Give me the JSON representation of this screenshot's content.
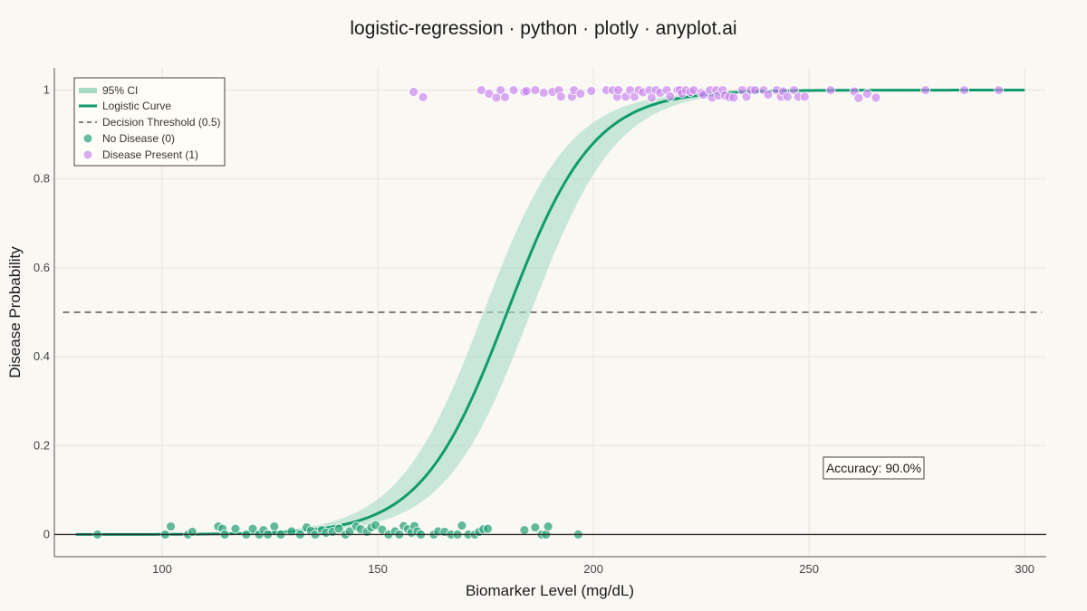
{
  "chart_data": {
    "type": "scatter",
    "title": "logistic-regression · python · plotly · anyplot.ai",
    "xlabel": "Biomarker Level (mg/dL)",
    "ylabel": "Disease Probability",
    "xlim": [
      75,
      305
    ],
    "ylim": [
      -0.05,
      1.05
    ],
    "x_ticks": [
      100,
      150,
      200,
      250,
      300
    ],
    "y_ticks": [
      0,
      0.2,
      0.4,
      0.6,
      0.8,
      1
    ],
    "x_tick_labels": [
      "100",
      "150",
      "200",
      "250",
      "300"
    ],
    "y_tick_labels": [
      "0",
      "0.2",
      "0.4",
      "0.6",
      "0.8",
      "1"
    ],
    "grid": true,
    "legend_position": "top-left",
    "colors": {
      "curve": "#0f9b6e",
      "ci": "#a8dcc6",
      "no_disease": "#2fa57c",
      "disease": "#c77ff0",
      "threshold": "#555555",
      "background": "#faf8f2",
      "grid": "#e6e3dc"
    },
    "logistic_model": {
      "midpoint": 180,
      "slope": 0.1,
      "x_range": [
        80,
        300
      ],
      "ci_logit_halfwidth": 0.55
    },
    "threshold": 0.5,
    "legend": {
      "ci": "95% CI",
      "curve": "Logistic Curve",
      "threshold": "Decision Threshold (0.5)",
      "no_disease": "No Disease (0)",
      "disease": "Disease Present (1)"
    },
    "annotation": "Accuracy: 90.0%",
    "series": [
      {
        "name": "No Disease (0)",
        "points": [
          [
            85,
            0
          ],
          [
            100.7,
            0
          ],
          [
            102,
            0.018
          ],
          [
            106,
            0
          ],
          [
            107,
            0.006
          ],
          [
            113,
            0.018
          ],
          [
            114,
            0.013
          ],
          [
            114.5,
            0
          ],
          [
            117,
            0.013
          ],
          [
            119.5,
            0
          ],
          [
            121,
            0.013
          ],
          [
            122.5,
            0
          ],
          [
            123.5,
            0.01
          ],
          [
            124.5,
            0
          ],
          [
            126,
            0.018
          ],
          [
            127.5,
            0
          ],
          [
            130,
            0.007
          ],
          [
            132,
            0
          ],
          [
            133.5,
            0.016
          ],
          [
            134.5,
            0.008
          ],
          [
            135.5,
            0
          ],
          [
            137,
            0.01
          ],
          [
            138,
            0.004
          ],
          [
            139.5,
            0.006
          ],
          [
            141,
            0.013
          ],
          [
            142.5,
            0
          ],
          [
            143.5,
            0.007
          ],
          [
            145,
            0.018
          ],
          [
            146,
            0.012
          ],
          [
            147.5,
            0.006
          ],
          [
            148.5,
            0.016
          ],
          [
            149.5,
            0.021
          ],
          [
            151,
            0.011
          ],
          [
            152.5,
            0
          ],
          [
            154,
            0.007
          ],
          [
            155,
            0
          ],
          [
            156,
            0.019
          ],
          [
            157,
            0.012
          ],
          [
            157.8,
            0.004
          ],
          [
            158.5,
            0.019
          ],
          [
            159.2,
            0.007
          ],
          [
            160,
            0
          ],
          [
            163,
            0
          ],
          [
            164,
            0.007
          ],
          [
            165.5,
            0.006
          ],
          [
            167,
            0
          ],
          [
            168.5,
            0
          ],
          [
            169.5,
            0.02
          ],
          [
            171,
            0
          ],
          [
            172.5,
            0
          ],
          [
            173.5,
            0.006
          ],
          [
            174.5,
            0.012
          ],
          [
            175.5,
            0.013
          ],
          [
            184,
            0.01
          ],
          [
            186.5,
            0.016
          ],
          [
            188,
            0
          ],
          [
            189,
            0
          ],
          [
            189.5,
            0.018
          ],
          [
            196.5,
            0
          ]
        ]
      },
      {
        "name": "Disease Present (1)",
        "points": [
          [
            158.3,
            0.996
          ],
          [
            160.5,
            0.984
          ],
          [
            174,
            1.0
          ],
          [
            175.8,
            0.992
          ],
          [
            177.5,
            0.983
          ],
          [
            178.5,
            1.0
          ],
          [
            179.5,
            0.984
          ],
          [
            181.5,
            1.0
          ],
          [
            184,
            0.996
          ],
          [
            184.5,
            0.998
          ],
          [
            186.5,
            1.0
          ],
          [
            188.5,
            0.994
          ],
          [
            190.5,
            0.996
          ],
          [
            192,
            1.0
          ],
          [
            192.5,
            0.985
          ],
          [
            195,
            0.985
          ],
          [
            195.5,
            1.0
          ],
          [
            197,
            0.992
          ],
          [
            199.5,
            0.998
          ],
          [
            203,
            1.0
          ],
          [
            204.5,
            1.0
          ],
          [
            205.5,
            0.985
          ],
          [
            205.8,
            1.0
          ],
          [
            207.5,
            0.985
          ],
          [
            208.5,
            1.0
          ],
          [
            209.5,
            0.985
          ],
          [
            210.5,
            1.0
          ],
          [
            211.5,
            0.995
          ],
          [
            213,
            1.0
          ],
          [
            213.5,
            0.983
          ],
          [
            214.5,
            1.0
          ],
          [
            215.5,
            0.994
          ],
          [
            217,
            1.0
          ],
          [
            217.8,
            0.986
          ],
          [
            219.5,
            1.0
          ],
          [
            220,
            1.0
          ],
          [
            220.5,
            0.993
          ],
          [
            221.5,
            1.0
          ],
          [
            222.5,
            0.996
          ],
          [
            223.3,
            1.0
          ],
          [
            225,
            0.994
          ],
          [
            225.5,
            0.99
          ],
          [
            227,
            1.0
          ],
          [
            227.5,
            0.983
          ],
          [
            228.5,
            1.0
          ],
          [
            229,
            0.988
          ],
          [
            230,
            1.0
          ],
          [
            230.5,
            0.988
          ],
          [
            231.5,
            0.984
          ],
          [
            232.5,
            0.983
          ],
          [
            234.5,
            1.0
          ],
          [
            235.5,
            0.985
          ],
          [
            236.5,
            1.0
          ],
          [
            237.5,
            1.0
          ],
          [
            239.5,
            1.0
          ],
          [
            240.5,
            0.99
          ],
          [
            242.5,
            1.0
          ],
          [
            243.5,
            0.985
          ],
          [
            244,
            0.997
          ],
          [
            245,
            0.985
          ],
          [
            246.5,
            1.0
          ],
          [
            247.5,
            0.985
          ],
          [
            249,
            0.985
          ],
          [
            255,
            1.0
          ],
          [
            260.5,
            0.997
          ],
          [
            261.5,
            0.982
          ],
          [
            263.5,
            0.992
          ],
          [
            265.5,
            0.983
          ],
          [
            277,
            1.0
          ],
          [
            286,
            1.0
          ],
          [
            294,
            1.0
          ]
        ]
      }
    ]
  }
}
